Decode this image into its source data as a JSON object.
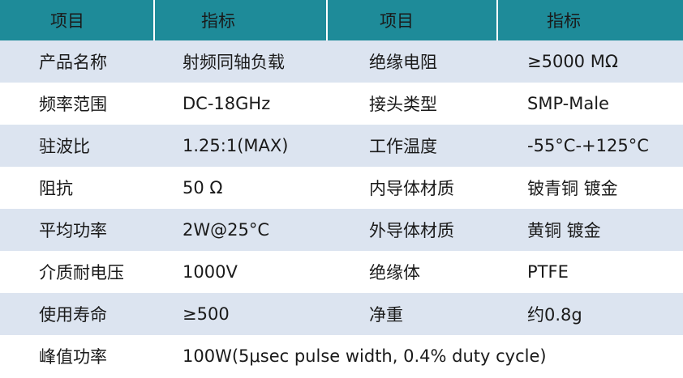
{
  "table": {
    "header": [
      "项目",
      "指标",
      "项目",
      "指标"
    ],
    "rows": [
      [
        "产品名称",
        "射频同轴负载",
        "绝缘电阻",
        "≥5000 MΩ"
      ],
      [
        "频率范围",
        "DC-18GHz",
        "接头类型",
        "SMP-Male"
      ],
      [
        "驻波比",
        "1.25:1(MAX)",
        "工作温度",
        "-55°C-+125°C"
      ],
      [
        "阻抗",
        "50 Ω",
        "内导体材质",
        "铍青铜 镀金"
      ],
      [
        "平均功率",
        "2W@25°C",
        "外导体材质",
        "黄铜 镀金"
      ],
      [
        "介质耐电压",
        "1000V",
        "绝缘体",
        "PTFE"
      ],
      [
        "使用寿命",
        "≥500",
        "净重",
        "约0.8g"
      ],
      [
        "峰值功率",
        "100W(5μsec pulse width, 0.4% duty cycle)"
      ]
    ]
  }
}
